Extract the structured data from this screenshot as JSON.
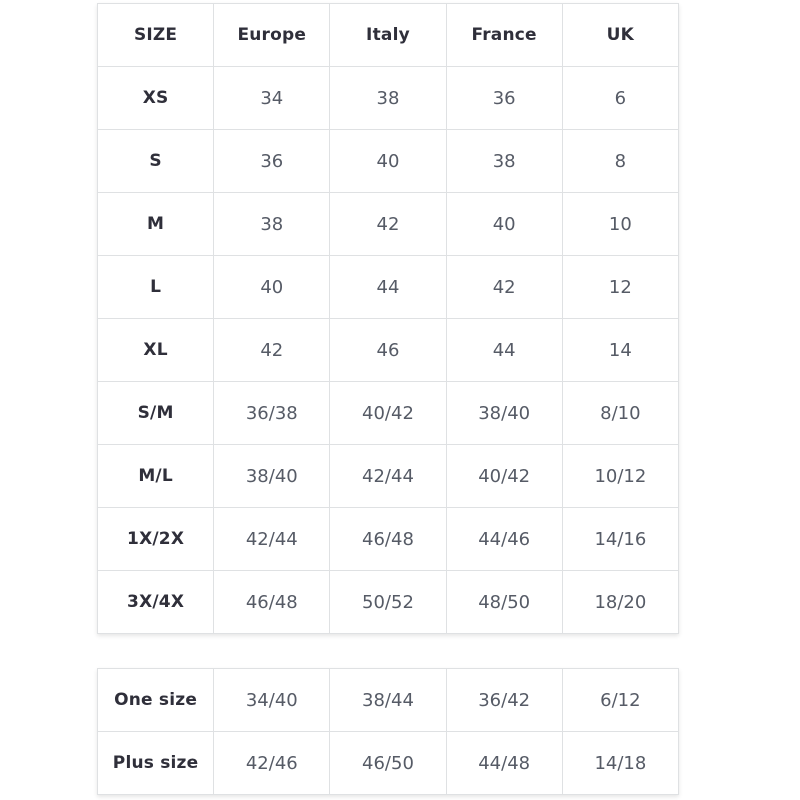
{
  "columns": [
    "SIZE",
    "Europe",
    "Italy",
    "France",
    "UK"
  ],
  "size_table": {
    "rows": [
      {
        "size": "XS",
        "europe": "34",
        "italy": "38",
        "france": "36",
        "uk": "6"
      },
      {
        "size": "S",
        "europe": "36",
        "italy": "40",
        "france": "38",
        "uk": "8"
      },
      {
        "size": "M",
        "europe": "38",
        "italy": "42",
        "france": "40",
        "uk": "10"
      },
      {
        "size": "L",
        "europe": "40",
        "italy": "44",
        "france": "42",
        "uk": "12"
      },
      {
        "size": "XL",
        "europe": "42",
        "italy": "46",
        "france": "44",
        "uk": "14"
      },
      {
        "size": "S/M",
        "europe": "36/38",
        "italy": "40/42",
        "france": "38/40",
        "uk": "8/10"
      },
      {
        "size": "M/L",
        "europe": "38/40",
        "italy": "42/44",
        "france": "40/42",
        "uk": "10/12"
      },
      {
        "size": "1X/2X",
        "europe": "42/44",
        "italy": "46/48",
        "france": "44/46",
        "uk": "14/16"
      },
      {
        "size": "3X/4X",
        "europe": "46/48",
        "italy": "50/52",
        "france": "48/50",
        "uk": "18/20"
      }
    ]
  },
  "special_table": {
    "rows": [
      {
        "size": "One size",
        "europe": "34/40",
        "italy": "38/44",
        "france": "36/42",
        "uk": "6/12"
      },
      {
        "size": "Plus size",
        "europe": "42/46",
        "italy": "46/50",
        "france": "44/48",
        "uk": "14/18"
      }
    ]
  },
  "colors": {
    "header_text": "#2f2f3a",
    "value_text": "#565b66",
    "border": "#dfe1e3",
    "background": "#ffffff"
  }
}
